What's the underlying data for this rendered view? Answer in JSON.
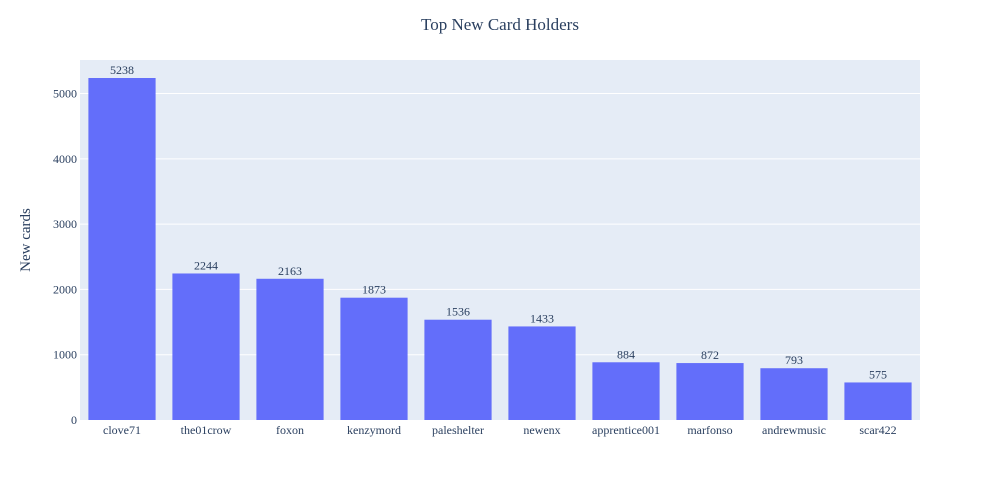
{
  "chart_data": {
    "type": "bar",
    "title": "Top New Card Holders",
    "xlabel": "",
    "ylabel": "New cards",
    "categories": [
      "clove71",
      "the01crow",
      "foxon",
      "kenzymord",
      "paleshelter",
      "newenx",
      "apprentice001",
      "marfonso",
      "andrewmusic",
      "scar422"
    ],
    "values": [
      5238,
      2244,
      2163,
      1873,
      1536,
      1433,
      884,
      872,
      793,
      575
    ],
    "ylim": [
      0,
      5513.68
    ],
    "yticks": [
      0,
      1000,
      2000,
      3000,
      4000,
      5000
    ],
    "grid": true,
    "legend": "none",
    "colors": {
      "bar": "#636efa",
      "plot_bg": "#e5ecf6",
      "grid": "#ffffff",
      "text": "#2a3f5f"
    }
  }
}
